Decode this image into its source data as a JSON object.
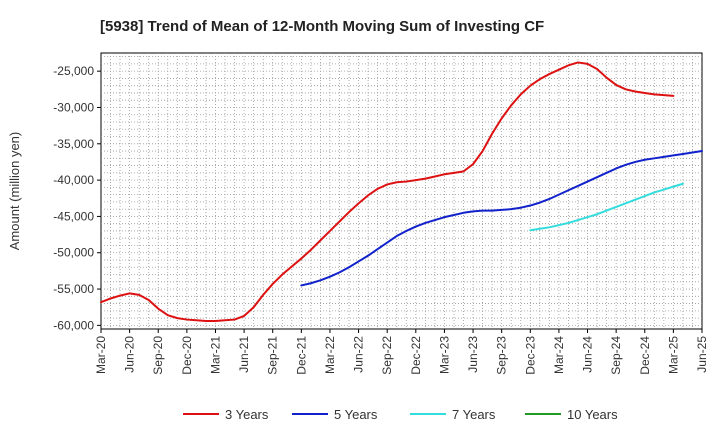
{
  "chart_data": {
    "type": "line",
    "title": "[5938]  Trend of Mean of 12-Month Moving Sum of Investing CF",
    "ylabel": "Amount (million yen)",
    "xlabel": "",
    "ylim": [
      -60500,
      -22500
    ],
    "yticks": [
      -25000,
      -30000,
      -35000,
      -40000,
      -45000,
      -50000,
      -55000,
      -60000
    ],
    "ytick_labels": [
      "-25,000",
      "-30,000",
      "-35,000",
      "-40,000",
      "-45,000",
      "-50,000",
      "-55,000",
      "-60,000"
    ],
    "xtick_labels": [
      "Mar-20",
      "Jun-20",
      "Sep-20",
      "Dec-20",
      "Mar-21",
      "Jun-21",
      "Sep-21",
      "Dec-21",
      "Mar-22",
      "Jun-22",
      "Sep-22",
      "Dec-22",
      "Mar-23",
      "Jun-23",
      "Sep-23",
      "Dec-23",
      "Mar-24",
      "Jun-24",
      "Sep-24",
      "Dec-24",
      "Mar-25",
      "Jun-25"
    ],
    "grid": true,
    "legend_position": "bottom",
    "series": [
      {
        "name": "3 Years",
        "color": "#dd1111",
        "start_index": 0,
        "values": [
          -56800,
          -56300,
          -55900,
          -55600,
          -55800,
          -56500,
          -57700,
          -58600,
          -59000,
          -59200,
          -59300,
          -59400,
          -59400,
          -59300,
          -59200,
          -58700,
          -57500,
          -55800,
          -54300,
          -53000,
          -51900,
          -50800,
          -49600,
          -48300,
          -47000,
          -45700,
          -44400,
          -43200,
          -42100,
          -41200,
          -40600,
          -40300,
          -40200,
          -40000,
          -39800,
          -39500,
          -39200,
          -39000,
          -38800,
          -37800,
          -36000,
          -33600,
          -31500,
          -29700,
          -28200,
          -27000,
          -26100,
          -25400,
          -24800,
          -24200,
          -23800,
          -24000,
          -24700,
          -25900,
          -26900,
          -27500,
          -27800,
          -28000,
          -28200,
          -28300,
          -28400
        ]
      },
      {
        "name": "5 Years",
        "color": "#1122cc",
        "start_index": 21,
        "values": [
          -54500,
          -54200,
          -53800,
          -53300,
          -52700,
          -52000,
          -51200,
          -50400,
          -49500,
          -48600,
          -47700,
          -47000,
          -46400,
          -45900,
          -45500,
          -45100,
          -44800,
          -44500,
          -44300,
          -44200,
          -44200,
          -44100,
          -44000,
          -43800,
          -43500,
          -43100,
          -42600,
          -42000,
          -41400,
          -40800,
          -40200,
          -39600,
          -39000,
          -38400,
          -37900,
          -37500,
          -37200,
          -37000,
          -36800,
          -36600,
          -36400,
          -36200,
          -36000
        ]
      },
      {
        "name": "7 Years",
        "color": "#33dddd",
        "start_index": 45,
        "values": [
          -46900,
          -46700,
          -46500,
          -46200,
          -45900,
          -45500,
          -45100,
          -44700,
          -44200,
          -43700,
          -43200,
          -42700,
          -42200,
          -41700,
          -41300,
          -40900,
          -40500
        ]
      },
      {
        "name": "10 Years",
        "color": "#229922",
        "start_index": 0,
        "values": []
      }
    ]
  }
}
